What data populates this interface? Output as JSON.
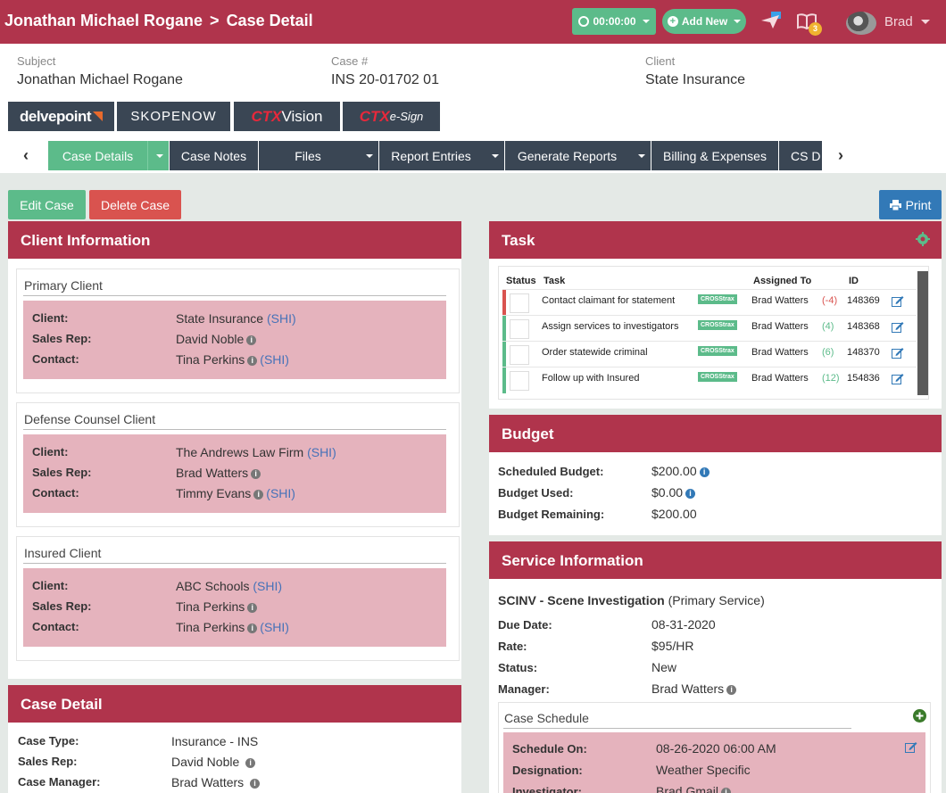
{
  "header": {
    "breadcrumb_name": "Jonathan Michael Rogane",
    "breadcrumb_sep": ">",
    "breadcrumb_page": "Case Detail",
    "timer": "00:00:00",
    "add_new": "Add New",
    "notification_count": "3",
    "user_name": "Brad"
  },
  "case_info": {
    "subject_label": "Subject",
    "subject_value": "Jonathan Michael Rogane",
    "case_label": "Case #",
    "case_value": "INS 20-01702 01",
    "client_label": "Client",
    "client_value": "State Insurance"
  },
  "brands": {
    "delvepoint": "delvepoint",
    "skopenow": "SKOPENOW",
    "ctx_vision_a": "CTX",
    "ctx_vision_b": " Vision",
    "ctx_esign_a": "CTX",
    "ctx_esign_b": "e-Sign"
  },
  "tabs": [
    {
      "label": "Case Details"
    },
    {
      "label": "Case Notes"
    },
    {
      "label": "Files"
    },
    {
      "label": "Report Entries"
    },
    {
      "label": "Generate Reports"
    },
    {
      "label": "Billing & Expenses"
    },
    {
      "label": "CS D"
    }
  ],
  "actions": {
    "edit": "Edit Case",
    "delete": "Delete Case",
    "print": "Print"
  },
  "client_info": {
    "title": "Client Information",
    "groups": [
      {
        "title": "Primary Client",
        "client_label": "Client:",
        "client": "State Insurance",
        "client_code": "(SHI)",
        "rep_label": "Sales Rep:",
        "rep": "David Noble",
        "contact_label": "Contact:",
        "contact": "Tina Perkins",
        "contact_code": "(SHI)"
      },
      {
        "title": "Defense Counsel Client",
        "client_label": "Client:",
        "client": "The Andrews Law Firm",
        "client_code": "(SHI)",
        "rep_label": "Sales Rep:",
        "rep": "Brad Watters",
        "contact_label": "Contact:",
        "contact": "Timmy Evans",
        "contact_code": "(SHI)"
      },
      {
        "title": "Insured Client",
        "client_label": "Client:",
        "client": "ABC Schools",
        "client_code": "(SHI)",
        "rep_label": "Sales Rep:",
        "rep": "Tina Perkins",
        "contact_label": "Contact:",
        "contact": "Tina Perkins",
        "contact_code": "(SHI)"
      }
    ]
  },
  "case_detail": {
    "title": "Case Detail",
    "type_label": "Case Type:",
    "type": "Insurance - INS",
    "rep_label": "Sales Rep:",
    "rep": "David Noble",
    "manager_label": "Case Manager:",
    "manager": "Brad Watters"
  },
  "task": {
    "title": "Task",
    "col_status": "Status",
    "col_task": "Task",
    "col_assigned": "Assigned To",
    "col_id": "ID",
    "rows": [
      {
        "task": "Contact claimant for statement",
        "tag": "CROSStrax",
        "assigned": "Brad Watters",
        "days": "(-4)",
        "id": "148369",
        "bar": "#d9534f",
        "days_color": "#d9534f"
      },
      {
        "task": "Assign services to investigators",
        "tag": "CROSStrax",
        "assigned": "Brad Watters",
        "days": "(4)",
        "id": "148368",
        "bar": "#5cbb8a",
        "days_color": "#5cbb8a"
      },
      {
        "task": "Order statewide criminal",
        "tag": "CROSStrax",
        "assigned": "Brad Watters",
        "days": "(6)",
        "id": "148370",
        "bar": "#5cbb8a",
        "days_color": "#5cbb8a"
      },
      {
        "task": "Follow up with Insured",
        "tag": "CROSStrax",
        "assigned": "Brad Watters",
        "days": "(12)",
        "id": "154836",
        "bar": "#5cbb8a",
        "days_color": "#5cbb8a"
      }
    ]
  },
  "budget": {
    "title": "Budget",
    "scheduled_label": "Scheduled Budget:",
    "scheduled": "$200.00",
    "used_label": "Budget Used:",
    "used": "$0.00",
    "remaining_label": "Budget Remaining:",
    "remaining": "$200.00"
  },
  "service": {
    "title": "Service Information",
    "name": "SCINV - Scene Investigation",
    "name_suffix": "(Primary Service)",
    "due_label": "Due Date:",
    "due": "08-31-2020",
    "rate_label": "Rate:",
    "rate": "$95/HR",
    "status_label": "Status:",
    "status": "New",
    "manager_label": "Manager:",
    "manager": "Brad Watters",
    "schedule_title": "Case Schedule",
    "schedule_on_label": "Schedule On:",
    "schedule_on": "08-26-2020 06:00 AM",
    "designation_label": "Designation:",
    "designation": "Weather Specific",
    "investigator_label": "Investigator:",
    "investigator": "Brad Gmail"
  },
  "colors": {
    "primary": "#b0344c",
    "accent": "#5cbb8a",
    "dark": "#3a4654",
    "danger": "#d9534f",
    "info": "#3279b7"
  },
  "icons": [
    "clock-icon",
    "plus-circle-icon",
    "mail-send-icon",
    "book-icon",
    "info-icon",
    "edit-icon",
    "gear-icon",
    "printer-icon",
    "chevron-left-icon",
    "chevron-right-icon"
  ]
}
